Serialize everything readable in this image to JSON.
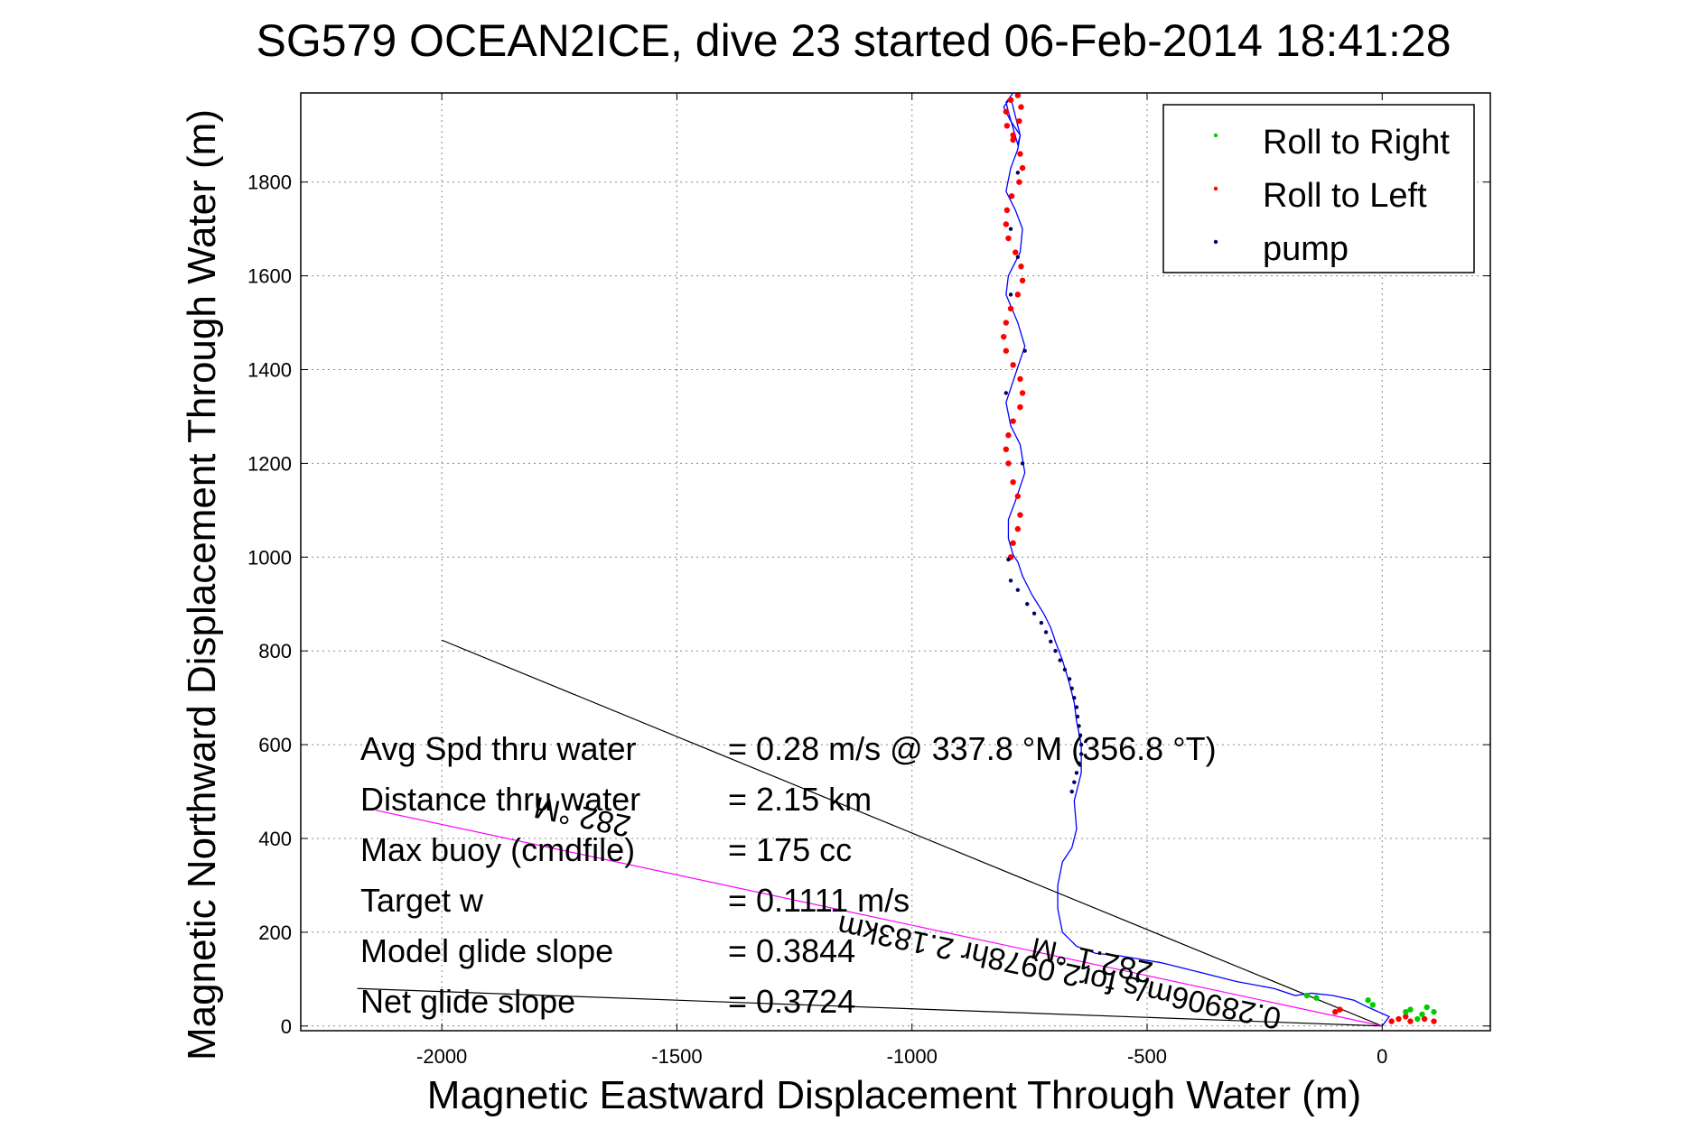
{
  "chart_data": {
    "type": "line",
    "title": "SG579 OCEAN2ICE, dive 23 started 06-Feb-2014 18:41:28",
    "xlabel": "Magnetic Eastward Displacement Through Water (m)",
    "ylabel": "Magnetic Northward Displacement Through Water (m)",
    "xlim": [
      -2300,
      230
    ],
    "ylim": [
      -10,
      1990
    ],
    "xticks": [
      -2000,
      -1500,
      -1000,
      -500,
      0
    ],
    "yticks": [
      0,
      200,
      400,
      600,
      800,
      1000,
      1200,
      1400,
      1600,
      1800
    ],
    "grid": true,
    "legend_position": "top-right",
    "legend": [
      {
        "label": "Roll to Right",
        "color": "#00cc00"
      },
      {
        "label": "Roll to Left",
        "color": "#ff0000"
      },
      {
        "label": "pump",
        "color": "#000066"
      }
    ],
    "series": [
      {
        "kind": "track",
        "color": "#0000ff",
        "x": [
          0,
          15,
          -30,
          -60,
          -105,
          -150,
          -185,
          -230,
          -310,
          -370,
          -470,
          -560,
          -610,
          -650,
          -680,
          -690,
          -690,
          -680,
          -660,
          -650,
          -655,
          -640,
          -640,
          -650,
          -655,
          -665,
          -680,
          -695,
          -705,
          -720,
          -745,
          -765,
          -775,
          -785,
          -795,
          -795,
          -780,
          -760,
          -770,
          -790,
          -800,
          -780,
          -760,
          -775,
          -800,
          -795,
          -770,
          -765,
          -780,
          -800,
          -790,
          -775,
          -770,
          -790,
          -805,
          -790,
          -770,
          -775,
          -795,
          -800,
          -785
        ],
        "y": [
          0,
          20,
          40,
          55,
          65,
          70,
          65,
          80,
          95,
          110,
          135,
          150,
          155,
          170,
          200,
          250,
          300,
          350,
          380,
          420,
          480,
          540,
          600,
          650,
          690,
          730,
          780,
          820,
          850,
          880,
          920,
          960,
          990,
          1005,
          1040,
          1080,
          1120,
          1180,
          1240,
          1280,
          1330,
          1390,
          1450,
          1500,
          1560,
          1600,
          1650,
          1700,
          1740,
          1780,
          1830,
          1870,
          1900,
          1930,
          1960,
          1980,
          1900,
          1880,
          1950,
          1970,
          1990
        ]
      },
      {
        "name": "Roll to Left",
        "color": "#ff0000",
        "x": [
          -790,
          -785,
          -775,
          -770,
          -775,
          -785,
          -795,
          -800,
          -795,
          -785,
          -770,
          -765,
          -770,
          -785,
          -800,
          -805,
          -800,
          -790,
          -775,
          -765,
          -768,
          -780,
          -795,
          -800,
          -798,
          -788,
          -772,
          -765,
          -770,
          -785,
          -798,
          -800,
          -790,
          -775,
          -768,
          -772,
          -785,
          -100,
          -90,
          20,
          35,
          50,
          60,
          90,
          110
        ],
        "y": [
          1000,
          1030,
          1060,
          1090,
          1130,
          1160,
          1200,
          1230,
          1260,
          1290,
          1320,
          1350,
          1380,
          1410,
          1440,
          1470,
          1500,
          1530,
          1560,
          1590,
          1620,
          1650,
          1680,
          1710,
          1740,
          1770,
          1800,
          1830,
          1860,
          1890,
          1920,
          1950,
          1975,
          1985,
          1960,
          1930,
          1900,
          30,
          35,
          10,
          15,
          20,
          10,
          15,
          10
        ]
      },
      {
        "name": "Roll to Right",
        "color": "#00cc00",
        "x": [
          -160,
          -140,
          -30,
          -20,
          50,
          60,
          75,
          85,
          95,
          110
        ],
        "y": [
          65,
          60,
          55,
          45,
          30,
          35,
          15,
          25,
          40,
          30
        ]
      },
      {
        "name": "pump",
        "color": "#000066",
        "x": [
          -795,
          -790,
          -775,
          -765,
          -760,
          -775,
          -790,
          -800,
          -790,
          -775,
          -755,
          -740,
          -725,
          -715,
          -705,
          -695,
          -685,
          -675,
          -665,
          -660,
          -655,
          -650,
          -648,
          -645,
          -642,
          -640,
          -640,
          -645,
          -650,
          -655,
          -660
        ],
        "y": [
          995,
          1700,
          1820,
          1200,
          1440,
          1640,
          1560,
          1350,
          950,
          930,
          900,
          880,
          860,
          840,
          820,
          800,
          780,
          760,
          740,
          720,
          700,
          680,
          660,
          640,
          620,
          600,
          580,
          560,
          540,
          520,
          500
        ]
      }
    ],
    "reference_lines": [
      {
        "label": "282.1 °M",
        "color": "#000000",
        "x": [
          0,
          -2000
        ],
        "y": [
          0,
          823
        ]
      },
      {
        "label": "",
        "color": "#000000",
        "x": [
          0,
          -2180
        ],
        "y": [
          0,
          80
        ]
      },
      {
        "label": "0.28906m/s for2.0978hr 2.183km 282.°M",
        "color": "#ff00ff",
        "x": [
          0,
          -2140
        ],
        "y": [
          0,
          460
        ]
      }
    ],
    "annotations": [
      {
        "text": "282.1 °M"
      },
      {
        "text": "0.28906m/s for2.0978hr 2.183km"
      },
      {
        "text": "282.°M"
      }
    ],
    "stats": [
      {
        "label": "Avg Spd thru water",
        "value": "=  0.28 m/s @ 337.8 °M (356.8 °T)"
      },
      {
        "label": "Distance thru water",
        "value": "=  2.15 km"
      },
      {
        "label": "Max buoy (cmdfile)",
        "value": "= 175 cc"
      },
      {
        "label": "Target w",
        "value": "= 0.1111 m/s"
      },
      {
        "label": "Model glide slope",
        "value": "= 0.3844"
      },
      {
        "label": "Net glide slope",
        "value": "= 0.3724"
      }
    ]
  }
}
